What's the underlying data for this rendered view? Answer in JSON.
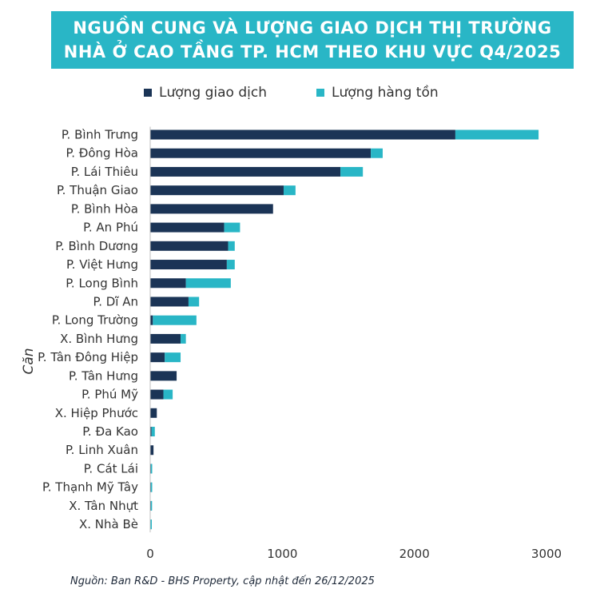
{
  "header": {
    "title_line1": "NGUỒN CUNG VÀ LƯỢNG GIAO DỊCH THỊ TRƯỜNG",
    "title_line2": "NHÀ Ở CAO TẦNG TP. HCM THEO KHU VỰC Q4/2025"
  },
  "colors": {
    "navy": "#1b3456",
    "teal": "#29b6c6",
    "title_bg": "#29b6c6"
  },
  "source": "Nguồn: Ban R&D - BHS Property, cập nhật đến 26/12/2025",
  "chart_data": {
    "type": "bar",
    "orientation": "horizontal",
    "stacked": true,
    "ylabel": "Căn",
    "xlim": [
      0,
      3000
    ],
    "xticks": [
      0,
      1000,
      2000,
      3000
    ],
    "legend_position": "top",
    "grid": false,
    "categories": [
      "P. Bình Trưng",
      "P. Đông Hòa",
      "P. Lái Thiêu",
      "P. Thuận Giao",
      "P. Bình Hòa",
      "P. An Phú",
      "P. Bình Dương",
      "P. Việt Hưng",
      "P. Long Bình",
      "P. Dĩ An",
      "P. Long Trường",
      "X. Bình Hưng",
      "P. Tân Đông Hiệp",
      "P. Tân Hưng",
      "P. Phú Mỹ",
      "X. Hiệp Phước",
      "P. Đa Kao",
      "P. Linh Xuân",
      "P. Cát Lái",
      "P. Thạnh Mỹ Tây",
      "X. Tân Nhựt",
      "X. Nhà Bè"
    ],
    "series": [
      {
        "name": "Lượng giao dịch",
        "color": "#1b3456",
        "values": [
          2310,
          1670,
          1440,
          1010,
          930,
          560,
          590,
          580,
          270,
          290,
          20,
          230,
          110,
          200,
          100,
          50,
          10,
          25,
          5,
          5,
          5,
          3
        ]
      },
      {
        "name": "Lượng hàng tồn",
        "color": "#29b6c6",
        "values": [
          630,
          90,
          170,
          90,
          0,
          120,
          50,
          60,
          340,
          80,
          330,
          40,
          120,
          0,
          70,
          0,
          25,
          0,
          10,
          10,
          5,
          5
        ]
      }
    ]
  }
}
